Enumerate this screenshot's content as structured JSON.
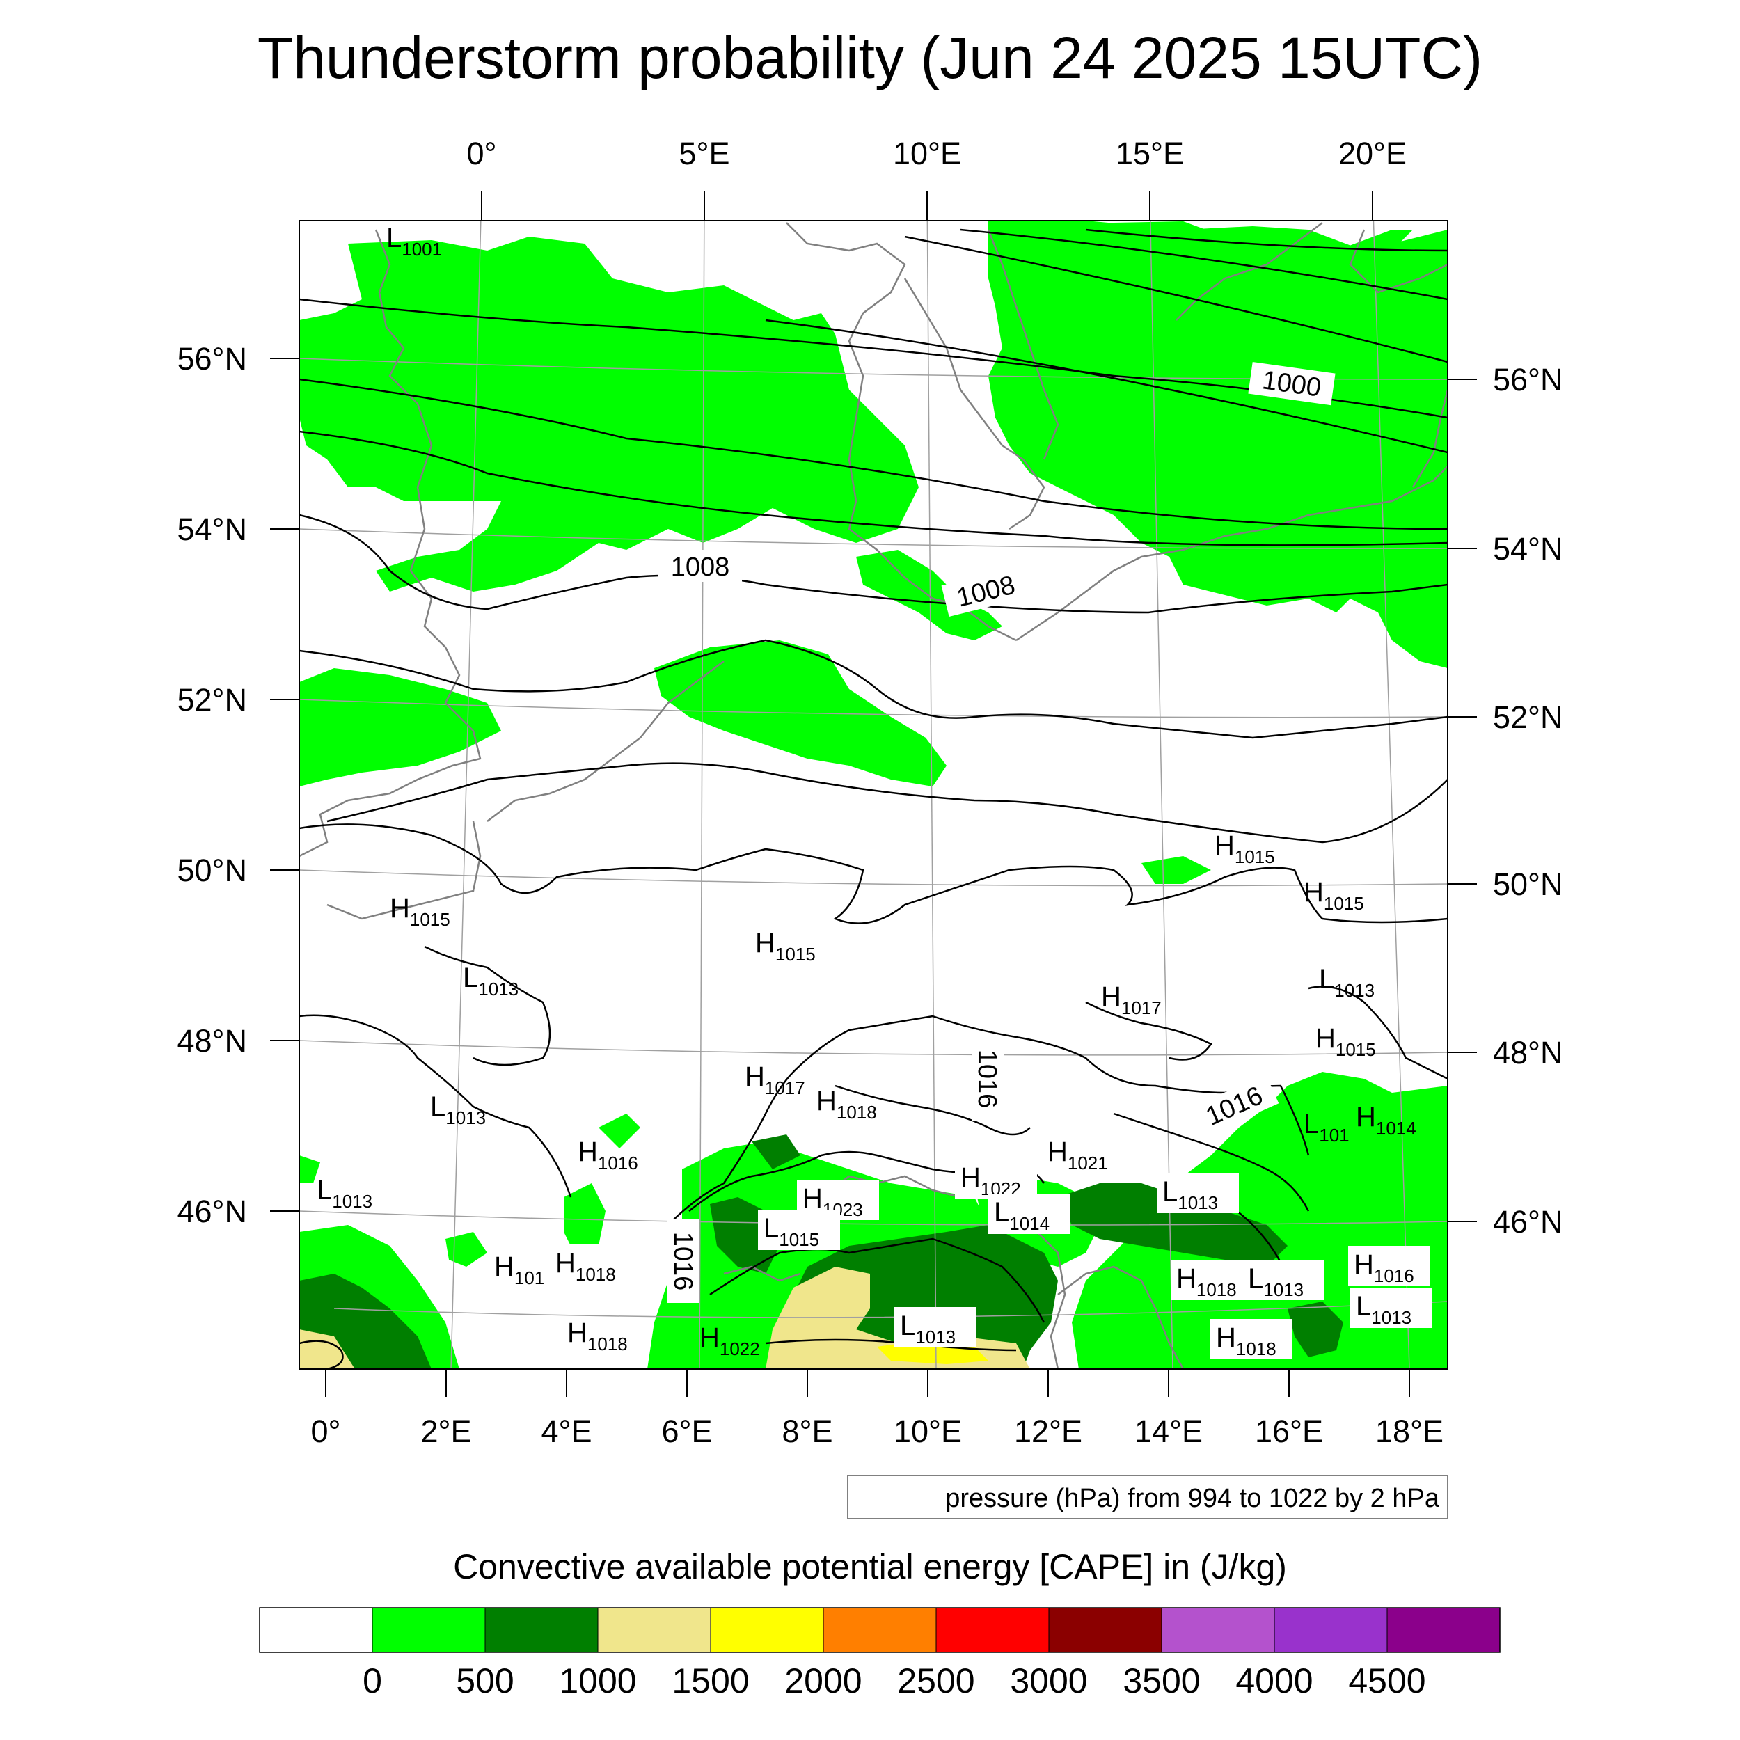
{
  "title": "Thunderstorm probability (Jun 24 2025 15UTC)",
  "top_lon_labels": [
    "0°",
    "5°E",
    "10°E",
    "15°E",
    "20°E"
  ],
  "bottom_lon_labels": [
    "0°",
    "2°E",
    "4°E",
    "6°E",
    "8°E",
    "10°E",
    "12°E",
    "14°E",
    "16°E",
    "18°E"
  ],
  "left_lat_labels": [
    "56°N",
    "54°N",
    "52°N",
    "50°N",
    "48°N",
    "46°N"
  ],
  "right_lat_labels": [
    "56°N",
    "54°N",
    "52°N",
    "50°N",
    "48°N",
    "46°N"
  ],
  "isobar_labels": [
    "1000",
    "1008",
    "1008",
    "1016",
    "1016",
    "1016"
  ],
  "pressure_centers": [
    {
      "kind": "L",
      "value": "1001"
    },
    {
      "kind": "H",
      "value": "1015"
    },
    {
      "kind": "H",
      "value": "1015"
    },
    {
      "kind": "L",
      "value": "1013"
    },
    {
      "kind": "H",
      "value": "1015"
    },
    {
      "kind": "H",
      "value": "1015"
    },
    {
      "kind": "H",
      "value": "1017"
    },
    {
      "kind": "L",
      "value": "1013"
    },
    {
      "kind": "H",
      "value": "1015"
    },
    {
      "kind": "L",
      "value": "1013"
    },
    {
      "kind": "H",
      "value": "1017"
    },
    {
      "kind": "H",
      "value": "1018"
    },
    {
      "kind": "H",
      "value": "1016"
    },
    {
      "kind": "H",
      "value": "1021"
    },
    {
      "kind": "H",
      "value": "1022"
    },
    {
      "kind": "L",
      "value": "1014"
    },
    {
      "kind": "L",
      "value": "1013"
    },
    {
      "kind": "H",
      "value": "1023"
    },
    {
      "kind": "L",
      "value": "1015"
    },
    {
      "kind": "L",
      "value": "1013"
    },
    {
      "kind": "H",
      "value": "101"
    },
    {
      "kind": "H",
      "value": "1018"
    },
    {
      "kind": "H",
      "value": "1018"
    },
    {
      "kind": "H",
      "value": "1022"
    },
    {
      "kind": "L",
      "value": "1013"
    },
    {
      "kind": "H",
      "value": "1018"
    },
    {
      "kind": "L",
      "value": "1013"
    },
    {
      "kind": "H",
      "value": "1018"
    },
    {
      "kind": "L",
      "value": "101"
    },
    {
      "kind": "H",
      "value": "1014"
    },
    {
      "kind": "H",
      "value": "1016"
    },
    {
      "kind": "L",
      "value": "1013"
    }
  ],
  "legend_note": "pressure (hPa) from 994 to 1022 by 2 hPa",
  "colorbar": {
    "title": "Convective available potential energy [CAPE] in (J/kg)",
    "colors": [
      "#ffffff",
      "#00ff00",
      "#007f00",
      "#f0e68c",
      "#ffff00",
      "#ff7f00",
      "#ff0000",
      "#8b0000",
      "#b452cd",
      "#9932cc",
      "#8b008b"
    ],
    "tick_labels": [
      "0",
      "500",
      "1000",
      "1500",
      "2000",
      "2500",
      "3000",
      "3500",
      "4000",
      "4500"
    ]
  },
  "colors": {
    "cape_0_500": "#00ff00",
    "cape_500_1000": "#007f00",
    "cape_1000_1500": "#f0e68c",
    "cape_1500_2000": "#ffff00",
    "coastline": "#808080",
    "isobar": "#000000"
  }
}
